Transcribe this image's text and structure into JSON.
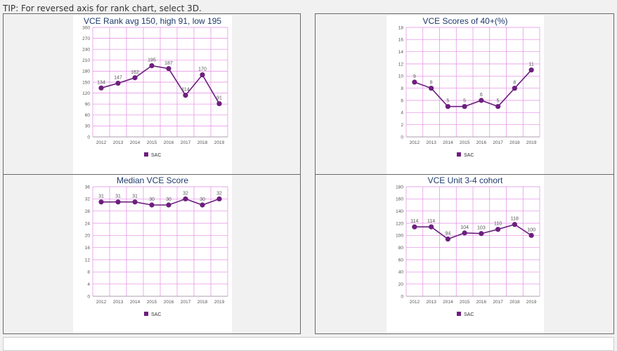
{
  "tip": "TIP: For reversed axis for rank chart, select 3D.",
  "colors": {
    "series": "#6d1f7e",
    "grid": "#e38ae3",
    "panel_border": "#6a6a6a"
  },
  "chart_data": [
    {
      "type": "line",
      "title": "VCE Rank avg 150, high 91, low 195",
      "categories": [
        "2012",
        "2013",
        "2014",
        "2015",
        "2016",
        "2017",
        "2018",
        "2019"
      ],
      "series": [
        {
          "name": "SAC",
          "values": [
            134,
            147,
            162,
            195,
            187,
            114,
            170,
            91
          ]
        }
      ],
      "ylim": [
        0,
        300
      ],
      "ytick_step": 30,
      "yticks": [
        "0",
        "30",
        "60",
        "90",
        "120",
        "150",
        "180",
        "210",
        "240",
        "270",
        "300"
      ],
      "labels": [
        "134",
        "147",
        "162",
        "195",
        "187",
        "114",
        "170",
        "91"
      ],
      "grid": true,
      "legend": "bottom"
    },
    {
      "type": "line",
      "title": "VCE Scores of 40+(%)",
      "categories": [
        "2012",
        "2013",
        "2014",
        "2015",
        "2016",
        "2017",
        "2018",
        "2019"
      ],
      "series": [
        {
          "name": "SAC",
          "values": [
            9,
            8,
            5,
            5,
            6,
            5,
            8,
            11
          ]
        }
      ],
      "ylim": [
        0,
        18
      ],
      "ytick_step": 2,
      "yticks": [
        "0",
        "2",
        "4",
        "6",
        "8",
        "10",
        "12",
        "14",
        "16",
        "18"
      ],
      "labels": [
        "9",
        "8",
        "5",
        "5",
        "6",
        "5",
        "8",
        "11"
      ],
      "grid": true,
      "legend": "bottom"
    },
    {
      "type": "line",
      "title": "Median VCE Score",
      "categories": [
        "2012",
        "2013",
        "2014",
        "2015",
        "2016",
        "2017",
        "2018",
        "2019"
      ],
      "series": [
        {
          "name": "SAC",
          "values": [
            31,
            31,
            31,
            30,
            30,
            32,
            30,
            32
          ]
        }
      ],
      "ylim": [
        0,
        36
      ],
      "ytick_step": 4,
      "yticks": [
        "0",
        "4",
        "8",
        "12",
        "16",
        "20",
        "24",
        "28",
        "32",
        "36"
      ],
      "labels": [
        "31",
        "31",
        "31",
        "30",
        "30",
        "32",
        "30",
        "32"
      ],
      "grid": true,
      "legend": "bottom"
    },
    {
      "type": "line",
      "title": "VCE Unit 3-4 cohort",
      "categories": [
        "2012",
        "2013",
        "2014",
        "2015",
        "2016",
        "2017",
        "2018",
        "2019"
      ],
      "series": [
        {
          "name": "SAC",
          "values": [
            114,
            114,
            94,
            104,
            103,
            110,
            118,
            100
          ]
        }
      ],
      "ylim": [
        0,
        180
      ],
      "ytick_step": 20,
      "yticks": [
        "0",
        "20",
        "40",
        "60",
        "80",
        "100",
        "120",
        "140",
        "160",
        "180"
      ],
      "labels": [
        "114",
        "114",
        "94",
        "104",
        "103",
        "110",
        "118",
        "100"
      ],
      "grid": true,
      "legend": "bottom"
    }
  ]
}
